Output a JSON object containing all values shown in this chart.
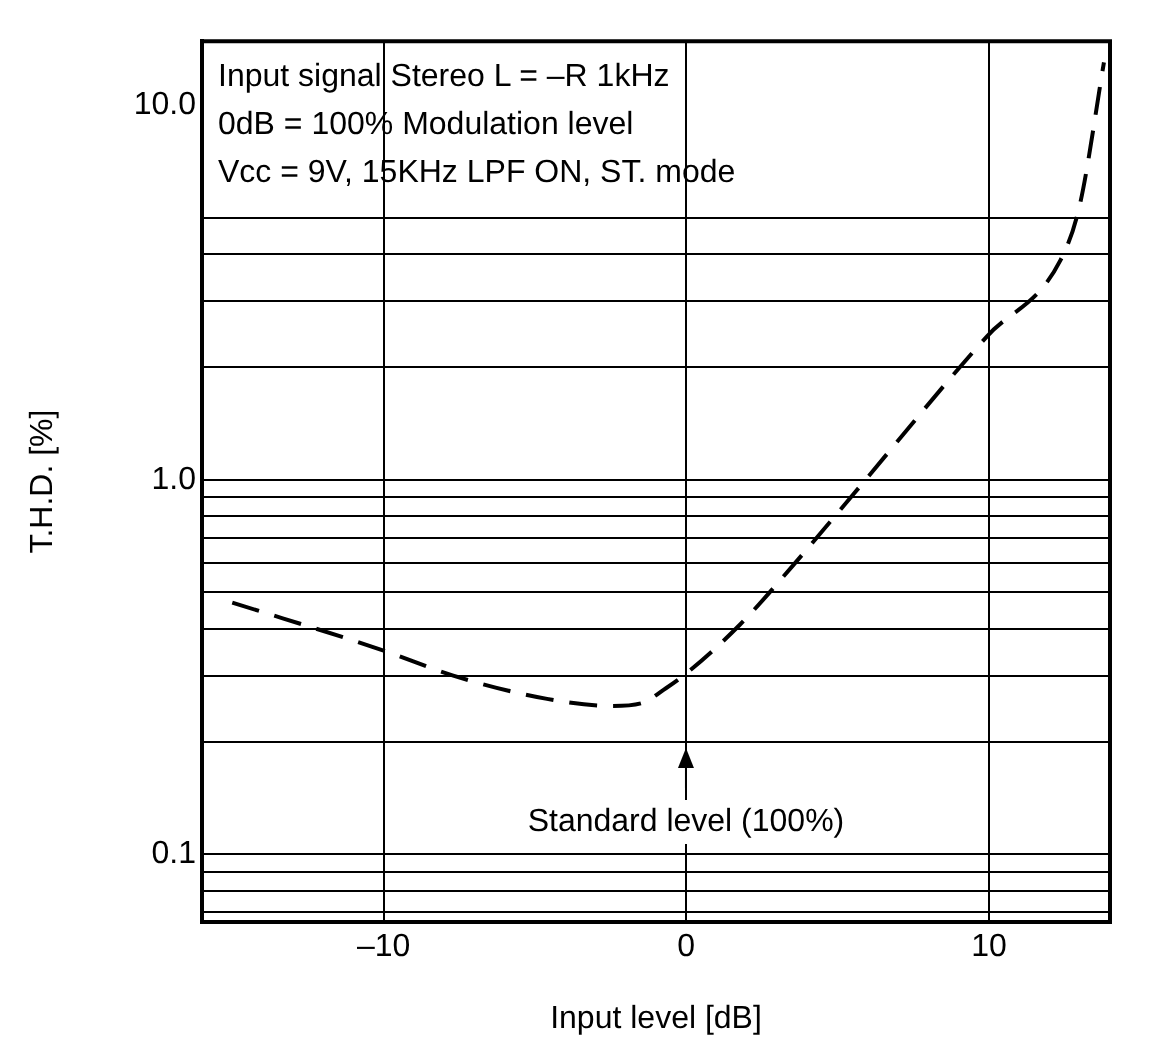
{
  "chart_data": {
    "type": "line",
    "xlabel": "Input level [dB]",
    "ylabel": "T.H.D. [%]",
    "annotations": [
      "Input signal Stereo L = –R 1kHz",
      "0dB = 100% Modulation level",
      "Vcc = 9V, 15KHz LPF ON, ST. mode",
      "Standard level (100%)"
    ],
    "series": [
      {
        "color": "#000000",
        "x": [
          -15,
          -10,
          -7.7,
          -4.6,
          -2.5,
          -1.5,
          -0.66,
          0,
          1.77,
          3.5,
          4.86,
          5.5,
          9.93,
          12.36,
          13,
          13.8
        ],
        "values": [
          0.47,
          0.35,
          0.3,
          0.26,
          0.249,
          0.253,
          0.278,
          0.304,
          0.41,
          0.587,
          0.79,
          0.91,
          2.41,
          3.85,
          5.4,
          13
        ]
      }
    ],
    "line_style": "dashed",
    "marker": "none",
    "log": "y",
    "grid": true,
    "legend": false,
    "xlim": [
      -16,
      14
    ],
    "xticks": [
      {
        "value": -10,
        "label": "–10"
      },
      0,
      10
    ],
    "ylim": [
      0.066,
      14.8
    ],
    "yticks": [
      {
        "value": 0.07,
        "label": null
      },
      {
        "value": 0.08,
        "label": null
      },
      {
        "value": 0.09,
        "label": null
      },
      0.1,
      {
        "value": 0.2,
        "label": null
      },
      {
        "value": 0.3,
        "label": null
      },
      {
        "value": 0.4,
        "label": null
      },
      {
        "value": 0.5,
        "label": null
      },
      {
        "value": 0.6,
        "label": null
      },
      {
        "value": 0.7,
        "label": null
      },
      {
        "value": 0.8,
        "label": null
      },
      {
        "value": 0.9,
        "label": null
      },
      {
        "value": 1,
        "label": "1.0"
      },
      {
        "value": 2,
        "label": null
      },
      {
        "value": 3,
        "label": null
      },
      {
        "value": 4,
        "label": null
      },
      {
        "value": 5,
        "label": null
      },
      {
        "value": 10,
        "label": "10.0"
      }
    ]
  }
}
